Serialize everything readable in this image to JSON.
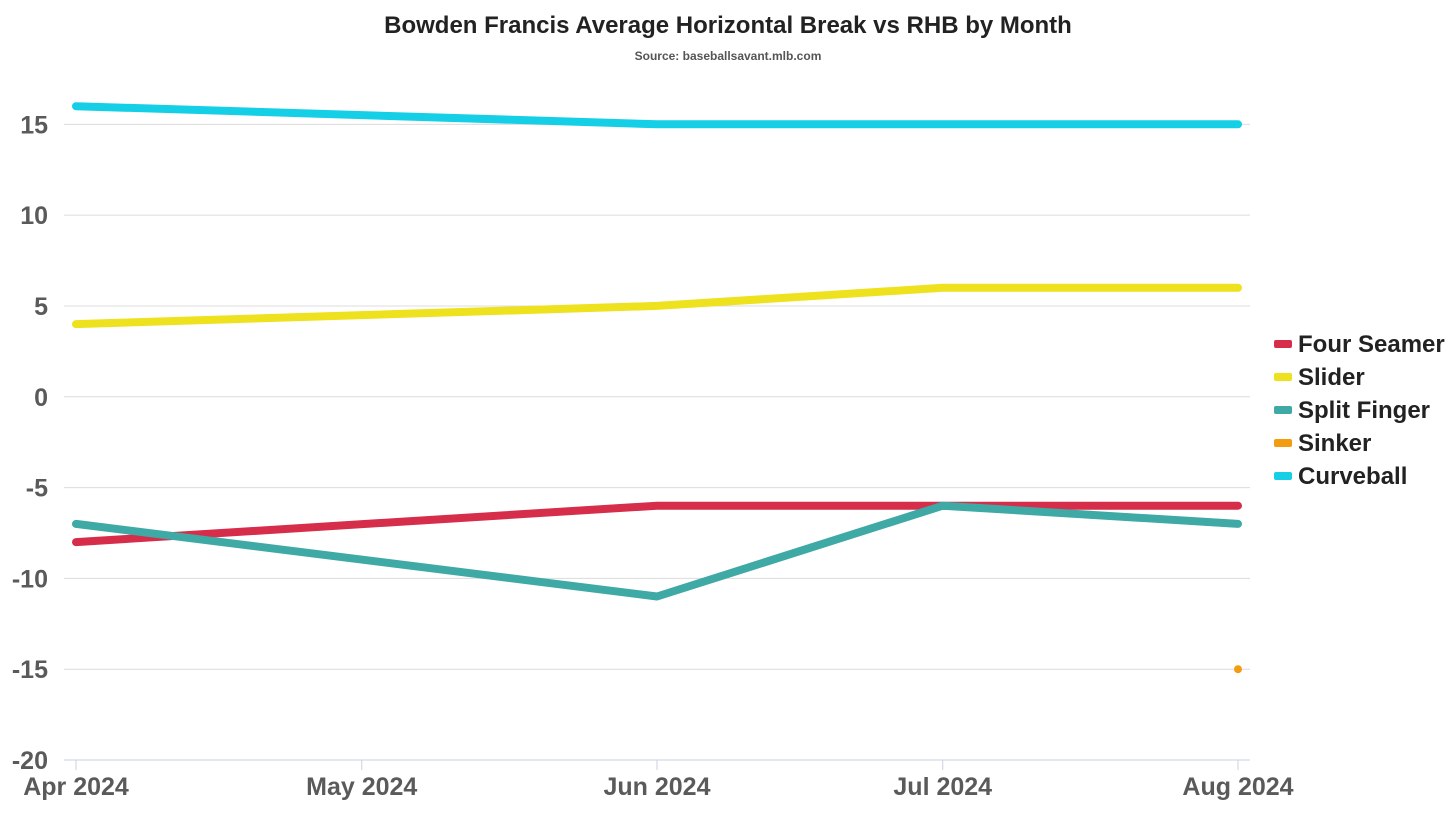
{
  "chart_data": {
    "type": "line",
    "title": "Bowden Francis Average Horizontal Break vs RHB by Month",
    "subtitle": "Source: baseballsavant.mlb.com",
    "xlabel": "",
    "ylabel": "",
    "categories": [
      "Apr 2024",
      "May 2024",
      "Jun 2024",
      "Jul 2024",
      "Aug 2024"
    ],
    "x_dates": [
      "2024-04-01",
      "2024-05-01",
      "2024-06-01",
      "2024-07-01",
      "2024-08-01"
    ],
    "ylim": [
      -20,
      17
    ],
    "y_ticks": [
      15,
      10,
      5,
      0,
      -5,
      -10,
      -15,
      -20
    ],
    "grid": true,
    "legend_position": "right",
    "series": [
      {
        "name": "Four Seamer",
        "color": "#d62d4a",
        "points": [
          {
            "x": "2024-04-01",
            "y": -8
          },
          {
            "x": "2024-06-01",
            "y": -6
          },
          {
            "x": "2024-07-01",
            "y": -6
          },
          {
            "x": "2024-08-01",
            "y": -6
          }
        ]
      },
      {
        "name": "Slider",
        "color": "#eee11e",
        "points": [
          {
            "x": "2024-04-01",
            "y": 4
          },
          {
            "x": "2024-06-01",
            "y": 5
          },
          {
            "x": "2024-07-01",
            "y": 6
          },
          {
            "x": "2024-08-01",
            "y": 6
          }
        ]
      },
      {
        "name": "Split Finger",
        "color": "#3fa9a5",
        "points": [
          {
            "x": "2024-04-01",
            "y": -7
          },
          {
            "x": "2024-06-01",
            "y": -11
          },
          {
            "x": "2024-07-01",
            "y": -6
          },
          {
            "x": "2024-08-01",
            "y": -7
          }
        ]
      },
      {
        "name": "Sinker",
        "color": "#f39c12",
        "points": [
          {
            "x": "2024-08-01",
            "y": -15
          }
        ]
      },
      {
        "name": "Curveball",
        "color": "#14cfe6",
        "points": [
          {
            "x": "2024-04-01",
            "y": 16
          },
          {
            "x": "2024-06-01",
            "y": 15
          },
          {
            "x": "2024-07-01",
            "y": 15
          },
          {
            "x": "2024-08-01",
            "y": 15
          }
        ]
      }
    ]
  }
}
